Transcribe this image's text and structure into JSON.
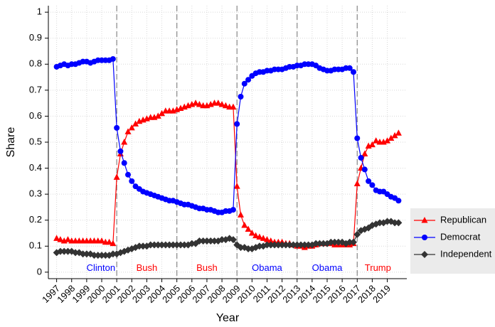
{
  "chart_data": {
    "type": "line",
    "xlabel": "Year",
    "ylabel": "Share",
    "x": [
      1997,
      1997.25,
      1997.5,
      1997.75,
      1998,
      1998.25,
      1998.5,
      1998.75,
      1999,
      1999.25,
      1999.5,
      1999.75,
      2000,
      2000.25,
      2000.5,
      2000.75,
      2001,
      2001.25,
      2001.5,
      2001.75,
      2002,
      2002.25,
      2002.5,
      2002.75,
      2003,
      2003.25,
      2003.5,
      2003.75,
      2004,
      2004.25,
      2004.5,
      2004.75,
      2005,
      2005.25,
      2005.5,
      2005.75,
      2006,
      2006.25,
      2006.5,
      2006.75,
      2007,
      2007.25,
      2007.5,
      2007.75,
      2008,
      2008.25,
      2008.5,
      2008.75,
      2009,
      2009.25,
      2009.5,
      2009.75,
      2010,
      2010.25,
      2010.5,
      2010.75,
      2011,
      2011.25,
      2011.5,
      2011.75,
      2012,
      2012.25,
      2012.5,
      2012.75,
      2013,
      2013.25,
      2013.5,
      2013.75,
      2014,
      2014.25,
      2014.5,
      2014.75,
      2015,
      2015.25,
      2015.5,
      2015.75,
      2016,
      2016.25,
      2016.5,
      2016.75,
      2017,
      2017.25,
      2017.5,
      2017.75,
      2018,
      2018.25,
      2018.5,
      2018.75,
      2019,
      2019.25,
      2019.5,
      2019.75
    ],
    "series": [
      {
        "name": "Republican",
        "color": "#ff0000",
        "marker": "triangle",
        "values": [
          0.13,
          0.125,
          0.12,
          0.125,
          0.12,
          0.12,
          0.12,
          0.12,
          0.12,
          0.12,
          0.12,
          0.12,
          0.12,
          0.115,
          0.115,
          0.11,
          0.365,
          0.455,
          0.5,
          0.54,
          0.555,
          0.57,
          0.58,
          0.585,
          0.59,
          0.595,
          0.595,
          0.6,
          0.61,
          0.62,
          0.62,
          0.62,
          0.625,
          0.63,
          0.635,
          0.64,
          0.645,
          0.65,
          0.645,
          0.64,
          0.64,
          0.645,
          0.65,
          0.65,
          0.645,
          0.64,
          0.635,
          0.635,
          0.33,
          0.22,
          0.18,
          0.165,
          0.15,
          0.14,
          0.135,
          0.13,
          0.125,
          0.12,
          0.115,
          0.115,
          0.115,
          0.11,
          0.11,
          0.105,
          0.1,
          0.1,
          0.095,
          0.1,
          0.1,
          0.105,
          0.11,
          0.11,
          0.11,
          0.11,
          0.105,
          0.105,
          0.105,
          0.105,
          0.105,
          0.11,
          0.34,
          0.4,
          0.455,
          0.485,
          0.49,
          0.505,
          0.5,
          0.5,
          0.505,
          0.515,
          0.525,
          0.535
        ]
      },
      {
        "name": "Democrat",
        "color": "#0000ff",
        "marker": "circle",
        "values": [
          0.79,
          0.795,
          0.8,
          0.795,
          0.8,
          0.8,
          0.805,
          0.81,
          0.81,
          0.805,
          0.81,
          0.815,
          0.815,
          0.815,
          0.815,
          0.82,
          0.555,
          0.465,
          0.42,
          0.375,
          0.35,
          0.33,
          0.32,
          0.31,
          0.305,
          0.3,
          0.295,
          0.29,
          0.285,
          0.28,
          0.275,
          0.275,
          0.27,
          0.265,
          0.26,
          0.26,
          0.255,
          0.25,
          0.245,
          0.245,
          0.24,
          0.24,
          0.235,
          0.23,
          0.23,
          0.235,
          0.235,
          0.24,
          0.57,
          0.675,
          0.725,
          0.74,
          0.755,
          0.765,
          0.77,
          0.77,
          0.775,
          0.775,
          0.78,
          0.78,
          0.78,
          0.785,
          0.79,
          0.79,
          0.795,
          0.795,
          0.8,
          0.8,
          0.8,
          0.795,
          0.785,
          0.78,
          0.775,
          0.775,
          0.78,
          0.78,
          0.78,
          0.785,
          0.785,
          0.77,
          0.515,
          0.44,
          0.395,
          0.35,
          0.335,
          0.315,
          0.31,
          0.31,
          0.3,
          0.29,
          0.285,
          0.275
        ]
      },
      {
        "name": "Independent",
        "color": "#333333",
        "marker": "diamond",
        "values": [
          0.075,
          0.08,
          0.08,
          0.08,
          0.08,
          0.075,
          0.075,
          0.07,
          0.07,
          0.07,
          0.065,
          0.065,
          0.065,
          0.065,
          0.065,
          0.07,
          0.07,
          0.075,
          0.08,
          0.085,
          0.09,
          0.095,
          0.1,
          0.1,
          0.1,
          0.105,
          0.105,
          0.105,
          0.105,
          0.105,
          0.105,
          0.105,
          0.105,
          0.105,
          0.105,
          0.105,
          0.11,
          0.11,
          0.12,
          0.12,
          0.12,
          0.12,
          0.12,
          0.12,
          0.125,
          0.125,
          0.13,
          0.125,
          0.105,
          0.095,
          0.095,
          0.09,
          0.09,
          0.095,
          0.1,
          0.1,
          0.105,
          0.105,
          0.105,
          0.105,
          0.105,
          0.105,
          0.105,
          0.105,
          0.105,
          0.105,
          0.105,
          0.105,
          0.105,
          0.11,
          0.11,
          0.11,
          0.11,
          0.115,
          0.115,
          0.115,
          0.115,
          0.11,
          0.115,
          0.115,
          0.145,
          0.16,
          0.165,
          0.17,
          0.18,
          0.185,
          0.19,
          0.19,
          0.195,
          0.195,
          0.19,
          0.19
        ]
      }
    ],
    "periods": [
      {
        "label": "Clinton",
        "start": 1997,
        "color": "#0000ff"
      },
      {
        "label": "Bush",
        "start": 2001,
        "color": "#ff0000"
      },
      {
        "label": "Bush",
        "start": 2005,
        "color": "#ff0000"
      },
      {
        "label": "Obama",
        "start": 2009,
        "color": "#0000ff"
      },
      {
        "label": "Obama",
        "start": 2013,
        "color": "#0000ff"
      },
      {
        "label": "Trump",
        "start": 2017,
        "color": "#ff0000"
      }
    ],
    "xlim": [
      1996.45,
      2020.3
    ],
    "ylim": [
      -0.025,
      1.025
    ],
    "xticks": [
      1997,
      1998,
      1999,
      2000,
      2001,
      2002,
      2003,
      2004,
      2005,
      2006,
      2007,
      2008,
      2009,
      2010,
      2011,
      2012,
      2013,
      2014,
      2015,
      2016,
      2017,
      2018,
      2019
    ],
    "yticks": [
      0,
      0.1,
      0.2,
      0.3,
      0.4,
      0.5,
      0.6,
      0.7,
      0.8,
      0.9,
      1
    ],
    "grid": true,
    "legend": "right"
  }
}
